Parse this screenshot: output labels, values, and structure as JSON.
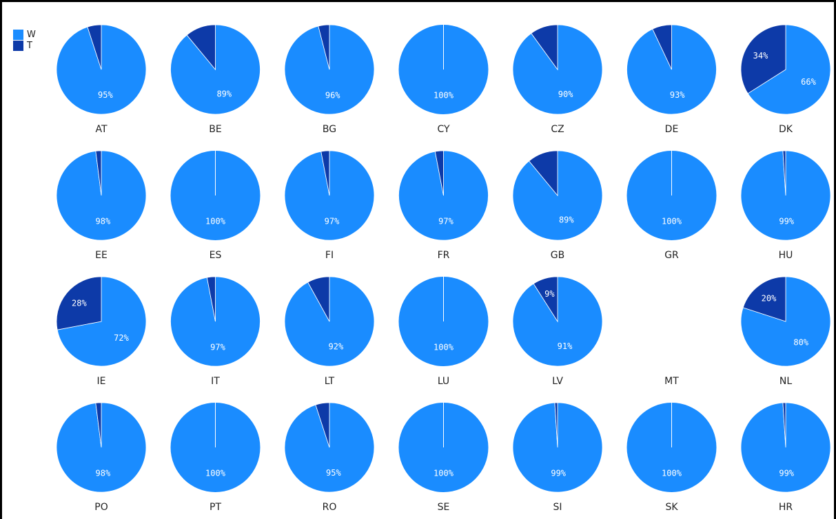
{
  "chart_data": {
    "type": "pie",
    "layout": "small-multiples 4x7",
    "legend": {
      "placement": "top-left",
      "entries": [
        {
          "key": "W",
          "label": "W",
          "color": "#1a8cff"
        },
        {
          "key": "T",
          "label": "T",
          "color": "#0d3aa8"
        }
      ]
    },
    "pies": [
      {
        "country": "AT",
        "W": 95,
        "T": 5,
        "W_label": "95%",
        "T_label": ""
      },
      {
        "country": "BE",
        "W": 89,
        "T": 11,
        "W_label": "89%",
        "T_label": ""
      },
      {
        "country": "BG",
        "W": 96,
        "T": 4,
        "W_label": "96%",
        "T_label": ""
      },
      {
        "country": "CY",
        "W": 100,
        "T": 0,
        "W_label": "100%",
        "T_label": ""
      },
      {
        "country": "CZ",
        "W": 90,
        "T": 10,
        "W_label": "90%",
        "T_label": ""
      },
      {
        "country": "DE",
        "W": 93,
        "T": 7,
        "W_label": "93%",
        "T_label": ""
      },
      {
        "country": "DK",
        "W": 66,
        "T": 34,
        "W_label": "66%",
        "T_label": "34%"
      },
      {
        "country": "EE",
        "W": 98,
        "T": 2,
        "W_label": "98%",
        "T_label": ""
      },
      {
        "country": "ES",
        "W": 100,
        "T": 0,
        "W_label": "100%",
        "T_label": ""
      },
      {
        "country": "FI",
        "W": 97,
        "T": 3,
        "W_label": "97%",
        "T_label": ""
      },
      {
        "country": "FR",
        "W": 97,
        "T": 3,
        "W_label": "97%",
        "T_label": ""
      },
      {
        "country": "GB",
        "W": 89,
        "T": 11,
        "W_label": "89%",
        "T_label": ""
      },
      {
        "country": "GR",
        "W": 100,
        "T": 0,
        "W_label": "100%",
        "T_label": ""
      },
      {
        "country": "HU",
        "W": 99,
        "T": 1,
        "W_label": "99%",
        "T_label": ""
      },
      {
        "country": "IE",
        "W": 72,
        "T": 28,
        "W_label": "72%",
        "T_label": "28%"
      },
      {
        "country": "IT",
        "W": 97,
        "T": 3,
        "W_label": "97%",
        "T_label": ""
      },
      {
        "country": "LT",
        "W": 92,
        "T": 8,
        "W_label": "92%",
        "T_label": ""
      },
      {
        "country": "LU",
        "W": 100,
        "T": 0,
        "W_label": "100%",
        "T_label": ""
      },
      {
        "country": "LV",
        "W": 91,
        "T": 9,
        "W_label": "91%",
        "T_label": "9%"
      },
      {
        "country": "MT",
        "W": null,
        "T": null,
        "W_label": "",
        "T_label": ""
      },
      {
        "country": "NL",
        "W": 80,
        "T": 20,
        "W_label": "80%",
        "T_label": "20%"
      },
      {
        "country": "PO",
        "W": 98,
        "T": 2,
        "W_label": "98%",
        "T_label": ""
      },
      {
        "country": "PT",
        "W": 100,
        "T": 0,
        "W_label": "100%",
        "T_label": ""
      },
      {
        "country": "RO",
        "W": 95,
        "T": 5,
        "W_label": "95%",
        "T_label": ""
      },
      {
        "country": "SE",
        "W": 100,
        "T": 0,
        "W_label": "100%",
        "T_label": ""
      },
      {
        "country": "SI",
        "W": 99,
        "T": 1,
        "W_label": "99%",
        "T_label": ""
      },
      {
        "country": "SK",
        "W": 100,
        "T": 0,
        "W_label": "100%",
        "T_label": ""
      },
      {
        "country": "HR",
        "W": 99,
        "T": 1,
        "W_label": "99%",
        "T_label": ""
      }
    ]
  }
}
